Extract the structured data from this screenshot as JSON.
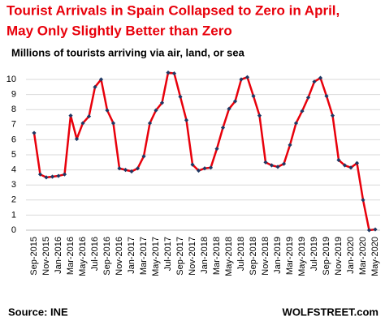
{
  "chart_data": {
    "type": "line",
    "title": [
      "Tourist Arrivals in Spain Collapsed to Zero in April,",
      "May Only Slightly Better than Zero"
    ],
    "subtitle": "Millions of tourists arriving via air, land, or sea",
    "source": "Source: INE",
    "credit": "WOLFSTREET.com",
    "categories": [
      "Sep-2015",
      null,
      "Nov-2015",
      null,
      "Jan-2016",
      null,
      "Mar-2016",
      null,
      "May-2016",
      null,
      "Jul-2016",
      null,
      "Sep-2016",
      null,
      "Nov-2016",
      null,
      "Jan-2017",
      null,
      "Mar-2017",
      null,
      "May-2017",
      null,
      "Jul-2017",
      null,
      "Sep-2017",
      null,
      "Nov-2017",
      null,
      "Jan-2018",
      null,
      "Mar-2018",
      null,
      "May-2018",
      null,
      "Jul-2018",
      null,
      "Sep-2018",
      null,
      "Nov-2018",
      null,
      "Jan-2019",
      null,
      "Mar-2019",
      null,
      "May-2019",
      null,
      "Jul-2019",
      null,
      "Sep-2019",
      null,
      "Nov-2019",
      null,
      "Jan-2020",
      null,
      "Mar-2020",
      null,
      "May-2020"
    ],
    "series": [
      {
        "name": "Tourist arrivals",
        "color": "#e8000b",
        "marker_color": "#1f3864",
        "values": [
          6.45,
          3.7,
          3.5,
          3.55,
          3.6,
          3.7,
          7.6,
          6.05,
          7.1,
          7.55,
          9.5,
          10.0,
          7.95,
          7.1,
          4.1,
          4.0,
          3.9,
          4.1,
          4.9,
          7.1,
          7.95,
          8.45,
          10.45,
          10.4,
          8.85,
          7.3,
          4.35,
          3.95,
          4.1,
          4.15,
          5.4,
          6.8,
          8.05,
          8.55,
          10.0,
          10.15,
          8.9,
          7.6,
          4.5,
          4.3,
          4.2,
          4.4,
          5.65,
          7.1,
          7.9,
          8.8,
          9.85,
          10.1,
          8.9,
          7.6,
          4.65,
          4.3,
          4.15,
          4.45,
          2.0,
          0,
          0.05
        ]
      }
    ],
    "ylim": [
      0,
      10.7
    ],
    "yticks": [
      0,
      1,
      2,
      3,
      4,
      5,
      6,
      7,
      8,
      9,
      10
    ],
    "grid": true
  }
}
